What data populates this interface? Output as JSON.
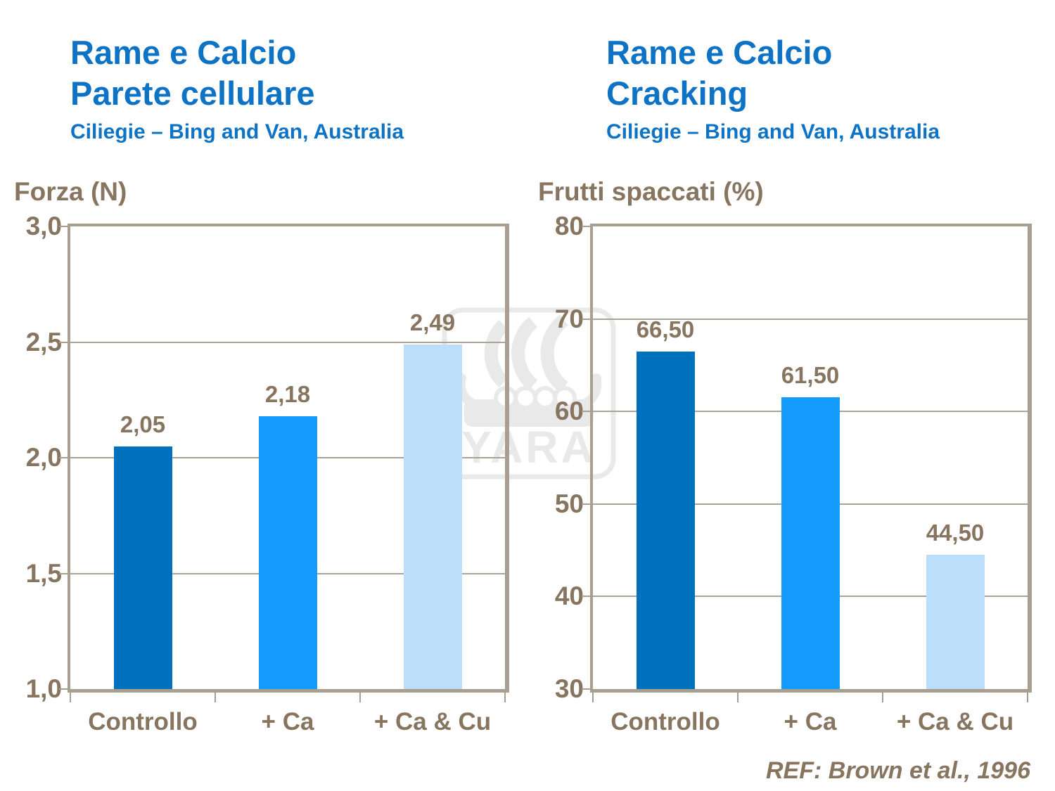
{
  "slide": {
    "footer_reference": "REF: Brown et al., 1996",
    "watermark_text": "YARA"
  },
  "colors": {
    "title_blue": "#0E73C4",
    "text_brown": "#877560",
    "border_tan": "#A99F91",
    "gridline_tan": "#ACA295",
    "watermark_gray": "#E9E9E9",
    "background": "#FFFFFF"
  },
  "chart_data": [
    {
      "type": "bar",
      "title_lines": [
        "Rame e Calcio",
        "Parete cellulare"
      ],
      "subtitle": "Ciliegie – Bing and Van, Australia",
      "ylabel": "Forza (N)",
      "categories": [
        "Controllo",
        "+ Ca",
        "+ Ca & Cu"
      ],
      "values": [
        2.05,
        2.18,
        2.49
      ],
      "value_labels": [
        "2,05",
        "2,18",
        "2,49"
      ],
      "ylim": [
        1.0,
        3.0
      ],
      "ytick_labels_top_to_bottom": [
        "3,0",
        "2,5",
        "2,0",
        "1,5",
        "1,0"
      ],
      "grid": true,
      "bar_colors": [
        "#0071BC",
        "#149BFB",
        "#BCDEFA"
      ]
    },
    {
      "type": "bar",
      "title_lines": [
        "Rame e Calcio",
        "Cracking"
      ],
      "subtitle": "Ciliegie – Bing and Van, Australia",
      "ylabel": "Frutti spaccati (%)",
      "categories": [
        "Controllo",
        "+ Ca",
        "+ Ca & Cu"
      ],
      "values": [
        66.5,
        61.5,
        44.5
      ],
      "value_labels": [
        "66,50",
        "61,50",
        "44,50"
      ],
      "ylim": [
        30,
        80
      ],
      "ytick_labels_top_to_bottom": [
        "80",
        "70",
        "60",
        "50",
        "40",
        "30"
      ],
      "grid": true,
      "bar_colors": [
        "#0071BC",
        "#149BFB",
        "#BCDEFA"
      ]
    }
  ]
}
